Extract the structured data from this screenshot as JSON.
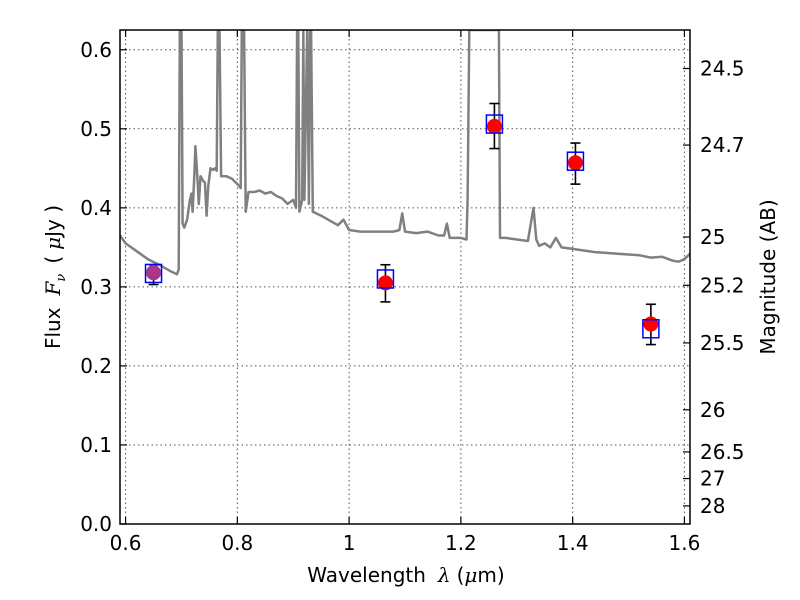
{
  "chart_data": {
    "type": "scatter",
    "xlabel": "Wavelength",
    "xlabel_symbol": "λ",
    "xlabel_unit_open": "(",
    "xlabel_unit_mu": "μ",
    "xlabel_unit_rest": "m)",
    "ylabel_left": "Flux",
    "ylabel_left_symbol": "F",
    "ylabel_left_subscript": "ν",
    "ylabel_left_unit_open": "(",
    "ylabel_left_unit_mu": "μ",
    "ylabel_left_unit_rest": "Jy )",
    "ylabel_right": "Magnitude (AB)",
    "xlim": [
      0.59,
      1.61
    ],
    "ylim": [
      0.0,
      0.625
    ],
    "grid": true,
    "xticks": [
      0.6,
      0.8,
      1.0,
      1.2,
      1.4,
      1.6
    ],
    "xtick_labels": [
      "0.6",
      "0.8",
      "1",
      "1.2",
      "1.4",
      "1.6"
    ],
    "yticks": [
      0.0,
      0.1,
      0.2,
      0.3,
      0.4,
      0.5,
      0.6
    ],
    "ytick_labels": [
      "0.0",
      "0.1",
      "0.2",
      "0.3",
      "0.4",
      "0.5",
      "0.6"
    ],
    "right_ticks": [
      {
        "flux": 0.5763,
        "label": "24.5"
      },
      {
        "flux": 0.4794,
        "label": "24.7"
      },
      {
        "flux": 0.3631,
        "label": "25"
      },
      {
        "flux": 0.302,
        "label": "25.2"
      },
      {
        "flux": 0.2291,
        "label": "25.5"
      },
      {
        "flux": 0.1445,
        "label": "26"
      },
      {
        "flux": 0.0912,
        "label": "26.5"
      },
      {
        "flux": 0.0575,
        "label": "27"
      },
      {
        "flux": 0.0229,
        "label": "28"
      }
    ],
    "template_spectrum": {
      "color": "#808080",
      "points": [
        [
          0.59,
          0.365
        ],
        [
          0.6,
          0.355
        ],
        [
          0.62,
          0.345
        ],
        [
          0.64,
          0.335
        ],
        [
          0.66,
          0.328
        ],
        [
          0.68,
          0.32
        ],
        [
          0.692,
          0.316
        ],
        [
          0.695,
          0.322
        ],
        [
          0.697,
          0.625
        ],
        [
          0.7,
          0.625
        ],
        [
          0.702,
          0.38
        ],
        [
          0.705,
          0.375
        ],
        [
          0.71,
          0.385
        ],
        [
          0.715,
          0.41
        ],
        [
          0.718,
          0.418
        ],
        [
          0.72,
          0.395
        ],
        [
          0.723,
          0.44
        ],
        [
          0.725,
          0.478
        ],
        [
          0.728,
          0.445
        ],
        [
          0.731,
          0.405
        ],
        [
          0.734,
          0.44
        ],
        [
          0.738,
          0.435
        ],
        [
          0.742,
          0.432
        ],
        [
          0.745,
          0.39
        ],
        [
          0.748,
          0.428
        ],
        [
          0.752,
          0.45
        ],
        [
          0.756,
          0.448
        ],
        [
          0.76,
          0.45
        ],
        [
          0.763,
          0.447
        ],
        [
          0.765,
          0.625
        ],
        [
          0.768,
          0.625
        ],
        [
          0.771,
          0.44
        ],
        [
          0.78,
          0.44
        ],
        [
          0.79,
          0.437
        ],
        [
          0.8,
          0.43
        ],
        [
          0.806,
          0.425
        ],
        [
          0.808,
          0.625
        ],
        [
          0.812,
          0.625
        ],
        [
          0.815,
          0.395
        ],
        [
          0.818,
          0.41
        ],
        [
          0.82,
          0.42
        ],
        [
          0.83,
          0.42
        ],
        [
          0.84,
          0.422
        ],
        [
          0.85,
          0.418
        ],
        [
          0.86,
          0.42
        ],
        [
          0.87,
          0.415
        ],
        [
          0.88,
          0.412
        ],
        [
          0.89,
          0.405
        ],
        [
          0.9,
          0.41
        ],
        [
          0.905,
          0.4
        ],
        [
          0.907,
          0.625
        ],
        [
          0.909,
          0.625
        ],
        [
          0.911,
          0.395
        ],
        [
          0.916,
          0.41
        ],
        [
          0.918,
          0.625
        ],
        [
          0.92,
          0.41
        ],
        [
          0.925,
          0.625
        ],
        [
          0.928,
          0.405
        ],
        [
          0.93,
          0.625
        ],
        [
          0.932,
          0.625
        ],
        [
          0.935,
          0.395
        ],
        [
          0.95,
          0.39
        ],
        [
          0.97,
          0.382
        ],
        [
          0.98,
          0.378
        ],
        [
          0.99,
          0.385
        ],
        [
          1.0,
          0.372
        ],
        [
          1.02,
          0.37
        ],
        [
          1.04,
          0.37
        ],
        [
          1.06,
          0.37
        ],
        [
          1.08,
          0.37
        ],
        [
          1.09,
          0.372
        ],
        [
          1.095,
          0.393
        ],
        [
          1.1,
          0.37
        ],
        [
          1.12,
          0.368
        ],
        [
          1.14,
          0.37
        ],
        [
          1.16,
          0.365
        ],
        [
          1.17,
          0.365
        ],
        [
          1.175,
          0.38
        ],
        [
          1.18,
          0.362
        ],
        [
          1.2,
          0.362
        ],
        [
          1.21,
          0.36
        ],
        [
          1.212,
          0.41
        ],
        [
          1.215,
          0.625
        ],
        [
          1.268,
          0.625
        ],
        [
          1.27,
          0.362
        ],
        [
          1.28,
          0.362
        ],
        [
          1.3,
          0.36
        ],
        [
          1.32,
          0.358
        ],
        [
          1.33,
          0.4
        ],
        [
          1.335,
          0.36
        ],
        [
          1.34,
          0.352
        ],
        [
          1.35,
          0.355
        ],
        [
          1.36,
          0.35
        ],
        [
          1.37,
          0.362
        ],
        [
          1.38,
          0.35
        ],
        [
          1.4,
          0.348
        ],
        [
          1.42,
          0.346
        ],
        [
          1.44,
          0.344
        ],
        [
          1.46,
          0.343
        ],
        [
          1.48,
          0.342
        ],
        [
          1.5,
          0.341
        ],
        [
          1.52,
          0.34
        ],
        [
          1.54,
          0.337
        ],
        [
          1.56,
          0.338
        ],
        [
          1.58,
          0.333
        ],
        [
          1.59,
          0.332
        ],
        [
          1.6,
          0.335
        ],
        [
          1.61,
          0.342
        ]
      ]
    },
    "series": [
      {
        "color": "#ff0000",
        "marker": "circle",
        "points": [
          {
            "x": 0.65,
            "y": 0.318
          },
          {
            "x": 1.065,
            "y": 0.305
          },
          {
            "x": 1.26,
            "y": 0.503
          },
          {
            "x": 1.405,
            "y": 0.457
          },
          {
            "x": 1.54,
            "y": 0.253
          }
        ],
        "errors": [
          [
            0.303,
            0.328
          ],
          [
            0.281,
            0.328
          ],
          [
            0.475,
            0.532
          ],
          [
            0.43,
            0.482
          ],
          [
            0.227,
            0.278
          ]
        ]
      },
      {
        "color": "#0000ff",
        "marker": "open-square",
        "points": [
          {
            "x": 0.65,
            "y": 0.317
          },
          {
            "x": 1.065,
            "y": 0.31
          },
          {
            "x": 1.26,
            "y": 0.506
          },
          {
            "x": 1.405,
            "y": 0.459
          },
          {
            "x": 1.54,
            "y": 0.247
          }
        ]
      }
    ]
  }
}
